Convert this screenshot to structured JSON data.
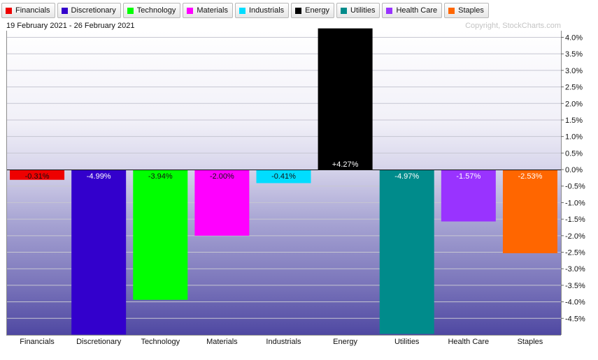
{
  "header": {
    "date_range": "19 February 2021 - 26 February 2021",
    "copyright": "Copyright, StockCharts.com"
  },
  "legend": [
    {
      "label": "Financials",
      "color": "#ee0000"
    },
    {
      "label": "Discretionary",
      "color": "#3300cc"
    },
    {
      "label": "Technology",
      "color": "#00ff00"
    },
    {
      "label": "Materials",
      "color": "#ff00ff"
    },
    {
      "label": "Industrials",
      "color": "#00ddff"
    },
    {
      "label": "Energy",
      "color": "#000000"
    },
    {
      "label": "Utilities",
      "color": "#008b8b"
    },
    {
      "label": "Health Care",
      "color": "#9933ff"
    },
    {
      "label": "Staples",
      "color": "#ff6600"
    }
  ],
  "chart_data": {
    "type": "bar",
    "categories": [
      "Financials",
      "Discretionary",
      "Technology",
      "Materials",
      "Industrials",
      "Energy",
      "Utilities",
      "Health Care",
      "Staples"
    ],
    "values": [
      -0.31,
      -4.99,
      -3.94,
      -2.0,
      -0.41,
      4.27,
      -4.97,
      -1.57,
      -2.53
    ],
    "data_labels": [
      "-0.31%",
      "-4.99%",
      "-3.94%",
      "-2.00%",
      "-0.41%",
      "+4.27%",
      "-4.97%",
      "-1.57%",
      "-2.53%"
    ],
    "colors": [
      "#ee0000",
      "#3300cc",
      "#00ff00",
      "#ff00ff",
      "#00ddff",
      "#000000",
      "#008b8b",
      "#9933ff",
      "#ff6600"
    ],
    "label_colors": [
      "#111111",
      "#ffffff",
      "#111111",
      "#111111",
      "#111111",
      "#ffffff",
      "#ffffff",
      "#ffffff",
      "#ffffff"
    ],
    "ylim": [
      -5.0,
      4.2
    ],
    "y_ticks": [
      4.0,
      3.5,
      3.0,
      2.5,
      2.0,
      1.5,
      1.0,
      0.5,
      0.0,
      -0.5,
      -1.0,
      -1.5,
      -2.0,
      -2.5,
      -3.0,
      -3.5,
      -4.0,
      -4.5
    ],
    "y_tick_labels": [
      "4.0%",
      "3.5%",
      "3.0%",
      "2.5%",
      "2.0%",
      "1.5%",
      "1.0%",
      "0.5%",
      "0.0%",
      "-0.5%",
      "-1.0%",
      "-1.5%",
      "-2.0%",
      "-2.5%",
      "-3.0%",
      "-3.5%",
      "-4.0%",
      "-4.5%"
    ],
    "y_axis_side": "right",
    "grid": true,
    "legend_placement": "top-left",
    "title": "",
    "xlabel": "",
    "ylabel": ""
  }
}
